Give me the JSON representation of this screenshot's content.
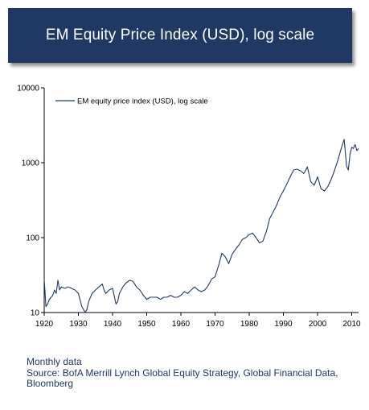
{
  "banner": {
    "title": "EM Equity Price Index (USD), log scale"
  },
  "footer": {
    "line1": "Monthly data",
    "line2": "Source: BofA Merrill Lynch Global Equity Strategy, Global Financial Data,",
    "line3": "Bloomberg"
  },
  "colors": {
    "banner": "#1f3864",
    "series": "#1f3864",
    "footer_text": "#1f3864"
  },
  "chart_data": {
    "type": "line",
    "title": "",
    "xlabel": "",
    "ylabel": "",
    "yscale": "log",
    "ylim": [
      10,
      10000
    ],
    "xlim": [
      1920,
      2012
    ],
    "x_ticks": [
      "1920",
      "1930",
      "1940",
      "1950",
      "1960",
      "1970",
      "1980",
      "1990",
      "2000",
      "2010"
    ],
    "y_ticks": [
      "10",
      "100",
      "1000",
      "10000"
    ],
    "grid": false,
    "legend_position": "top-left",
    "series": [
      {
        "name": "EM equity price index (USD), log scale",
        "x": [
          1920,
          1920.5,
          1921,
          1921.5,
          1922,
          1922.5,
          1923,
          1923.5,
          1924,
          1924.5,
          1925,
          1926,
          1927,
          1928,
          1929,
          1930,
          1931,
          1932,
          1932.5,
          1933,
          1934,
          1935,
          1936,
          1937,
          1937.5,
          1938,
          1939,
          1940,
          1941,
          1941.5,
          1942,
          1943,
          1944,
          1945,
          1946,
          1947,
          1948,
          1949,
          1950,
          1951,
          1952,
          1953,
          1954,
          1955,
          1956,
          1957,
          1958,
          1959,
          1960,
          1961,
          1962,
          1963,
          1964,
          1965,
          1966,
          1967,
          1968,
          1969,
          1970,
          1971,
          1972,
          1973,
          1974,
          1975,
          1976,
          1977,
          1978,
          1979,
          1980,
          1981,
          1982,
          1983,
          1984,
          1985,
          1986,
          1987,
          1988,
          1989,
          1990,
          1991,
          1992,
          1993,
          1994,
          1995,
          1996,
          1997,
          1998,
          1999,
          2000,
          2001,
          2002,
          2003,
          2004,
          2005,
          2006,
          2007,
          2007.8,
          2008.5,
          2009,
          2009.5,
          2010,
          2010.5,
          2011,
          2011.5,
          2012
        ],
        "y": [
          28,
          12,
          13,
          15,
          16,
          17,
          20,
          18,
          27,
          20,
          22,
          21,
          22,
          21,
          20,
          18,
          12,
          10,
          11,
          14,
          18,
          20,
          22,
          24,
          20,
          18,
          20,
          21,
          13,
          14,
          18,
          22,
          25,
          27,
          26,
          22,
          20,
          17,
          15,
          16,
          16,
          16,
          15,
          16,
          16,
          17,
          16,
          16,
          17,
          19,
          18,
          20,
          22,
          20,
          19,
          20,
          23,
          28,
          30,
          42,
          62,
          55,
          45,
          60,
          70,
          80,
          95,
          100,
          110,
          115,
          100,
          85,
          90,
          120,
          180,
          220,
          270,
          350,
          420,
          520,
          650,
          800,
          820,
          780,
          720,
          880,
          560,
          500,
          650,
          450,
          420,
          480,
          600,
          800,
          1100,
          1600,
          2050,
          900,
          800,
          1300,
          1600,
          1550,
          1750,
          1450,
          1550
        ]
      }
    ]
  }
}
